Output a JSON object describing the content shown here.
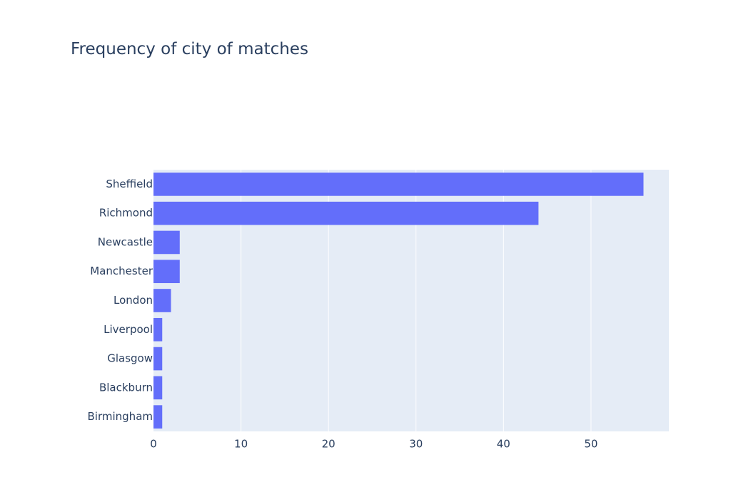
{
  "chart_data": {
    "type": "bar",
    "orientation": "horizontal",
    "title": "Frequency of city of matches",
    "xlabel": "",
    "ylabel": "",
    "categories": [
      "Sheffield",
      "Richmond",
      "Newcastle",
      "Manchester",
      "London",
      "Liverpool",
      "Glasgow",
      "Blackburn",
      "Birmingham"
    ],
    "values": [
      56,
      44,
      3,
      3,
      2,
      1,
      1,
      1,
      1
    ],
    "xlim": [
      0,
      58.9
    ],
    "xticks": [
      0,
      10,
      20,
      30,
      40,
      50
    ],
    "grid": true,
    "colors": {
      "bar": "#636efa",
      "plot_background": "#e5ecf6",
      "grid": "#ffffff",
      "text": "#2a3f5f"
    }
  }
}
